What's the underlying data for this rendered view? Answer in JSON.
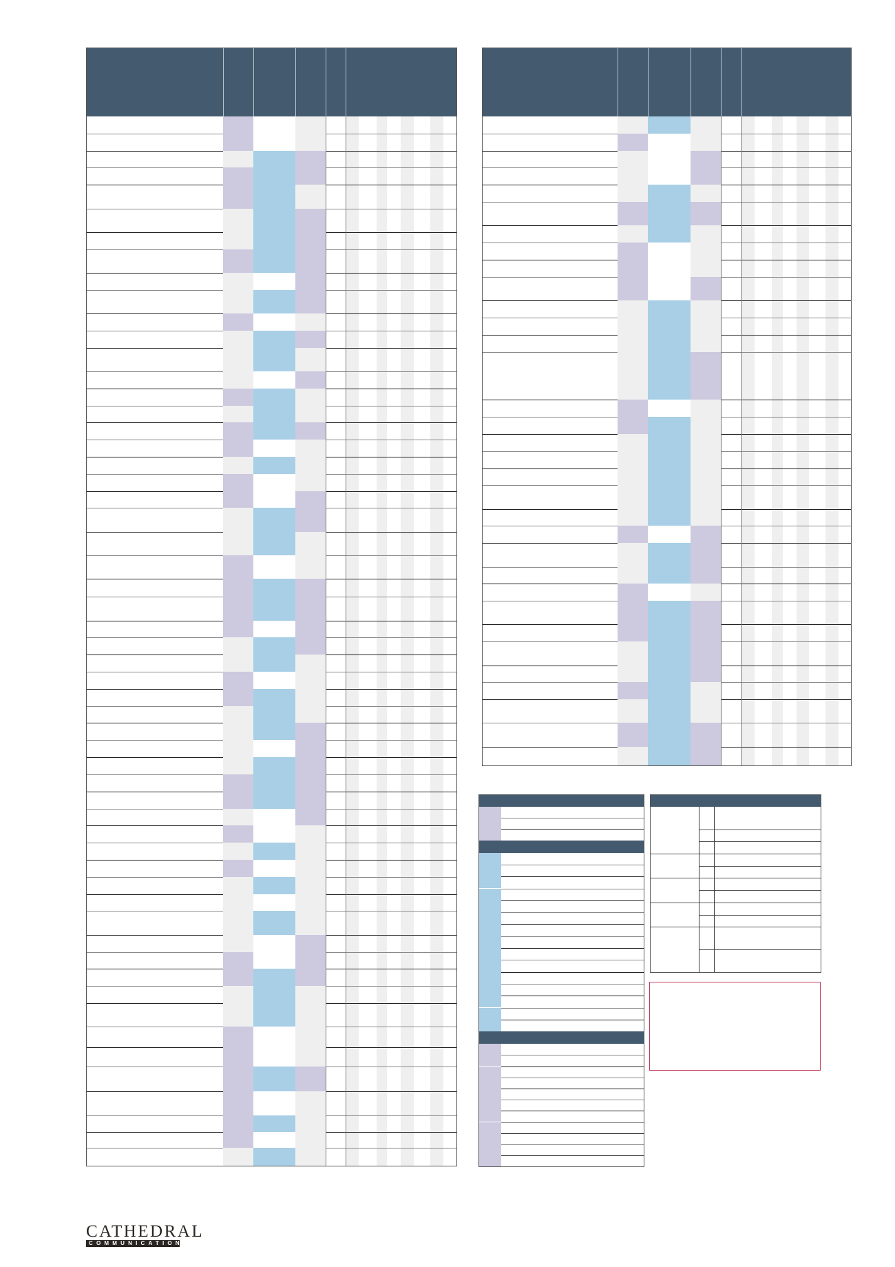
{
  "colors": {
    "header": "#445a6e",
    "purple": "#cdc9de",
    "blue": "#a8cfe6",
    "grey": "#efefef",
    "red_border": "#c43a5c"
  },
  "left_table": {
    "rows": [
      "PWG",
      "PWG",
      "GBP",
      "PBP",
      "PBG",
      "GBP",
      "GBP",
      "PBP",
      "GWP",
      "GBP",
      "PWG",
      "GBP",
      "GBG",
      "GWP",
      "PBG",
      "GBG",
      "PBP",
      "PWG",
      "GBG",
      "PWG",
      "PWP",
      "GBP",
      "GBG",
      "PWG",
      "PBP",
      "PBP",
      "PWP",
      "GBP",
      "GBG",
      "PWG",
      "PBG",
      "GBG",
      "GBP",
      "GWP",
      "GBP",
      "PBP",
      "PBP",
      "GWP",
      "PWG",
      "GBG",
      "PWG",
      "GBG",
      "GWG",
      "GBG",
      "GWP",
      "PWP",
      "PBP",
      "GBG",
      "GBG",
      "PWG",
      "PWG",
      "PBP",
      "PWG",
      "PBG",
      "PWG",
      "GBG"
    ]
  },
  "right_table": {
    "rows": [
      "GBG",
      "PWG",
      "GWP",
      "GWP",
      "GBG",
      "PBP",
      "GBG",
      "PWG",
      "PWG",
      "PWP",
      "GBG",
      "GBG",
      "GBG",
      "GBP",
      "PWG",
      "PBG",
      "GBG",
      "GBG",
      "GBG",
      "GBG",
      "GBG",
      "PWP",
      "GBP",
      "GBP",
      "PWG",
      "PBP",
      "PBP",
      "GBP",
      "GBP",
      "PBG",
      "GBG",
      "PBP",
      "GBP"
    ]
  },
  "legend_left": {
    "sections": [
      {
        "swatch": "P",
        "rows": 3
      },
      {
        "swatch": "B",
        "rows": 15
      },
      {
        "swatch": "P",
        "rows": 11
      }
    ]
  },
  "logo": {
    "name": "CATHEDRAL",
    "tagline": "COMMUNICATIONS"
  }
}
